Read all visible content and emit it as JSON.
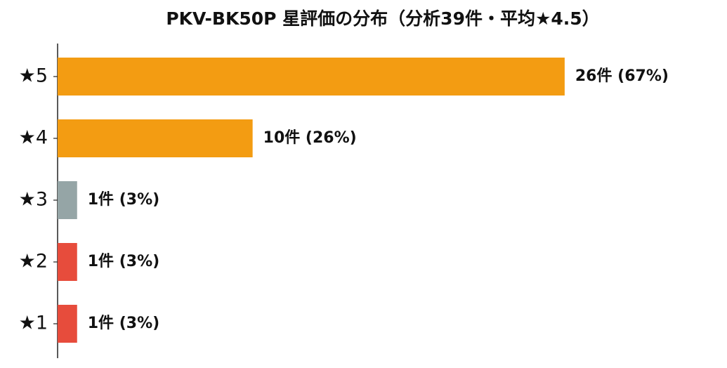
{
  "chart_data": {
    "type": "bar",
    "orientation": "horizontal",
    "title": "PKV-BK50P 星評価の分布（分析39件・平均★4.5）",
    "categories": [
      "★5",
      "★4",
      "★3",
      "★2",
      "★1"
    ],
    "values": [
      26,
      10,
      1,
      1,
      1
    ],
    "value_labels": [
      "26件 (67%)",
      "10件 (26%)",
      "1件 (3%)",
      "1件 (3%)",
      "1件 (3%)"
    ],
    "colors": [
      "#f39c12",
      "#f39c12",
      "#95a5a6",
      "#e74c3c",
      "#e74c3c"
    ],
    "xlim": [
      0,
      34
    ]
  }
}
